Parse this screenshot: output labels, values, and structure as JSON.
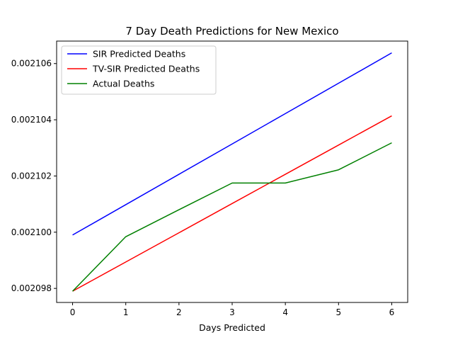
{
  "chart_data": {
    "type": "line",
    "title": "7 Day Death Predictions for New Mexico",
    "xlabel": "Days Predicted",
    "ylabel": "",
    "x": [
      0,
      1,
      2,
      3,
      4,
      5,
      6
    ],
    "xlim": [
      -0.3,
      6.3
    ],
    "ylim": [
      0.0020975,
      0.0021068
    ],
    "xticks": [
      "0",
      "1",
      "2",
      "3",
      "4",
      "5",
      "6"
    ],
    "yticks": [
      {
        "value": 0.002098,
        "label": "0.002098"
      },
      {
        "value": 0.0021,
        "label": "0.002100"
      },
      {
        "value": 0.002102,
        "label": "0.002102"
      },
      {
        "value": 0.002104,
        "label": "0.002104"
      },
      {
        "value": 0.002106,
        "label": "0.002106"
      }
    ],
    "grid": false,
    "legend_position": "top-left",
    "series": [
      {
        "name": "SIR Predicted Deaths",
        "color": "#0000ff",
        "values": [
          0.0020999,
          0.00210098,
          0.00210206,
          0.00210314,
          0.00210422,
          0.0021053,
          0.00210638
        ]
      },
      {
        "name": "TV-SIR Predicted Deaths",
        "color": "#ff0000",
        "values": [
          0.0020979,
          0.00209894,
          0.00209998,
          0.00210102,
          0.00210206,
          0.0021031,
          0.00210414
        ]
      },
      {
        "name": "Actual Deaths",
        "color": "#008000",
        "values": [
          0.0020979,
          0.00209984,
          0.0021008,
          0.00210175,
          0.00210175,
          0.00210222,
          0.00210318
        ]
      }
    ]
  }
}
